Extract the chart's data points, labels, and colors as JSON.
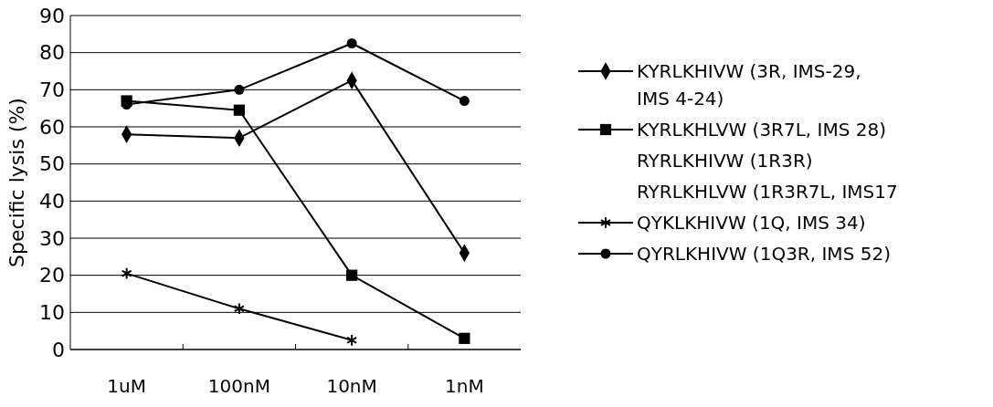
{
  "chart_data": {
    "type": "line",
    "ylabel": "Specific lysis (%)",
    "categories": [
      "1uM",
      "100nM",
      "10nM",
      "1nM"
    ],
    "ylim": [
      0,
      90
    ],
    "yticks": [
      0,
      10,
      20,
      30,
      40,
      50,
      60,
      70,
      80,
      90
    ],
    "grid": "y",
    "legend": "right",
    "series": [
      {
        "name": "KYRLKHIVW (3R, IMS-29, IMS 4-24)",
        "color": "#000000",
        "marker": "diamond",
        "values": [
          58,
          57,
          72.5,
          26
        ]
      },
      {
        "name": "KYRLKHLVW (3R7L, IMS 28)",
        "color": "#000000",
        "marker": "square",
        "values": [
          67,
          64.5,
          20,
          3
        ]
      },
      {
        "name": "RYRLKHIVW (1R3R)",
        "color": "#000000",
        "marker": "none",
        "values": [
          null,
          null,
          null,
          null
        ]
      },
      {
        "name": "RYRLKHLVW (1R3R7L, IMS17",
        "color": "#000000",
        "marker": "none",
        "values": [
          null,
          null,
          null,
          null
        ]
      },
      {
        "name": "QYKLKHIVW (1Q, IMS 34)",
        "color": "#000000",
        "marker": "cross",
        "values": [
          20.5,
          11,
          2.5,
          null
        ]
      },
      {
        "name": "QYRLKHIVW (1Q3R, IMS 52)",
        "color": "#000000",
        "marker": "circle",
        "values": [
          66,
          70,
          82.5,
          67
        ]
      }
    ]
  }
}
